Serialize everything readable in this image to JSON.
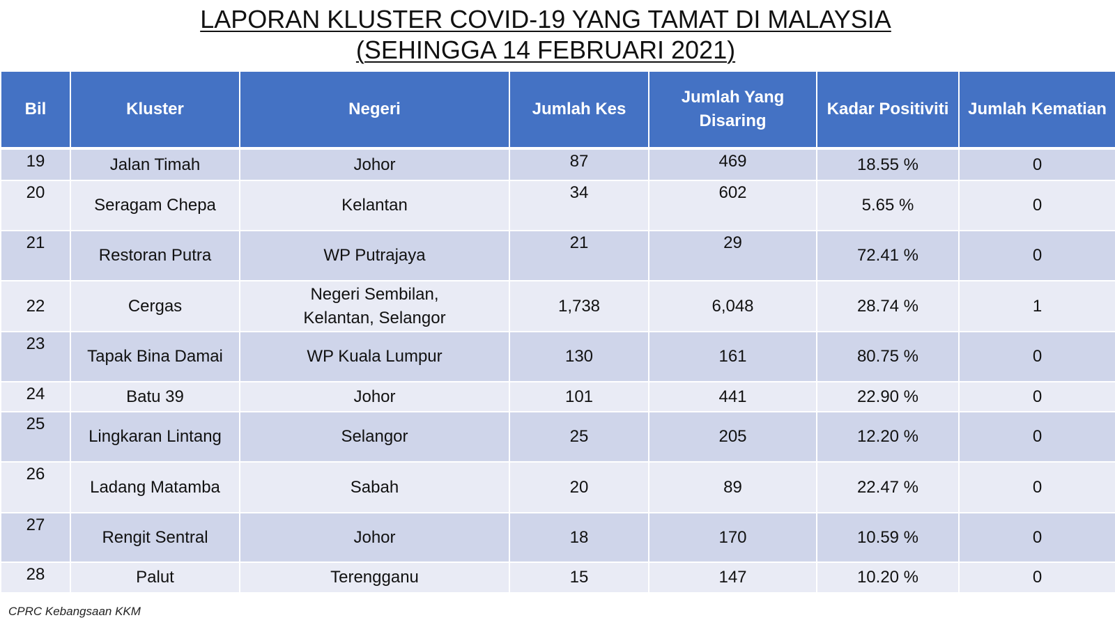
{
  "title": {
    "line1": "LAPORAN KLUSTER COVID-19 YANG TAMAT DI MALAYSIA",
    "line2": "(SEHINGGA  14 FEBRUARI 2021)"
  },
  "table": {
    "headers": {
      "bil": "Bil",
      "kluster": "Kluster",
      "negeri": "Negeri",
      "jumlah_kes": "Jumlah Kes",
      "jumlah_disaring": "Jumlah Yang Disaring",
      "kadar_positiviti": "Kadar Positiviti",
      "jumlah_kematian": "Jumlah Kematian"
    },
    "rows": [
      {
        "bil": "19",
        "kluster": "Jalan Timah",
        "negeri": "Johor",
        "jumlah_kes": "87",
        "jumlah_disaring": "469",
        "kadar_positiviti": "18.55 %",
        "jumlah_kematian": "0"
      },
      {
        "bil": "20",
        "kluster": "Seragam Chepa",
        "negeri": "Kelantan",
        "jumlah_kes": "34",
        "jumlah_disaring": "602",
        "kadar_positiviti": "5.65 %",
        "jumlah_kematian": "0"
      },
      {
        "bil": "21",
        "kluster": "Restoran Putra",
        "negeri": "WP Putrajaya",
        "jumlah_kes": "21",
        "jumlah_disaring": "29",
        "kadar_positiviti": "72.41 %",
        "jumlah_kematian": "0"
      },
      {
        "bil": "22",
        "kluster": "Cergas",
        "negeri": "Negeri Sembilan, Kelantan, Selangor",
        "jumlah_kes": "1,738",
        "jumlah_disaring": "6,048",
        "kadar_positiviti": "28.74 %",
        "jumlah_kematian": "1"
      },
      {
        "bil": "23",
        "kluster": "Tapak Bina Damai",
        "negeri": "WP Kuala Lumpur",
        "jumlah_kes": "130",
        "jumlah_disaring": "161",
        "kadar_positiviti": "80.75 %",
        "jumlah_kematian": "0"
      },
      {
        "bil": "24",
        "kluster": "Batu 39",
        "negeri": "Johor",
        "jumlah_kes": "101",
        "jumlah_disaring": "441",
        "kadar_positiviti": "22.90 %",
        "jumlah_kematian": "0"
      },
      {
        "bil": "25",
        "kluster": "Lingkaran Lintang",
        "negeri": "Selangor",
        "jumlah_kes": "25",
        "jumlah_disaring": "205",
        "kadar_positiviti": "12.20 %",
        "jumlah_kematian": "0"
      },
      {
        "bil": "26",
        "kluster": "Ladang Matamba",
        "negeri": "Sabah",
        "jumlah_kes": "20",
        "jumlah_disaring": "89",
        "kadar_positiviti": "22.47 %",
        "jumlah_kematian": "0"
      },
      {
        "bil": "27",
        "kluster": "Rengit Sentral",
        "negeri": "Johor",
        "jumlah_kes": "18",
        "jumlah_disaring": "170",
        "kadar_positiviti": "10.59 %",
        "jumlah_kematian": "0"
      },
      {
        "bil": "28",
        "kluster": "Palut",
        "negeri": "Terengganu",
        "jumlah_kes": "15",
        "jumlah_disaring": "147",
        "kadar_positiviti": "10.20 %",
        "jumlah_kematian": "0"
      }
    ]
  },
  "footer": {
    "source": "CPRC Kebangsaan KKM"
  },
  "colors": {
    "header_bg": "#4472c4",
    "row_odd_bg": "#cfd5ea",
    "row_even_bg": "#e9ebf5"
  }
}
